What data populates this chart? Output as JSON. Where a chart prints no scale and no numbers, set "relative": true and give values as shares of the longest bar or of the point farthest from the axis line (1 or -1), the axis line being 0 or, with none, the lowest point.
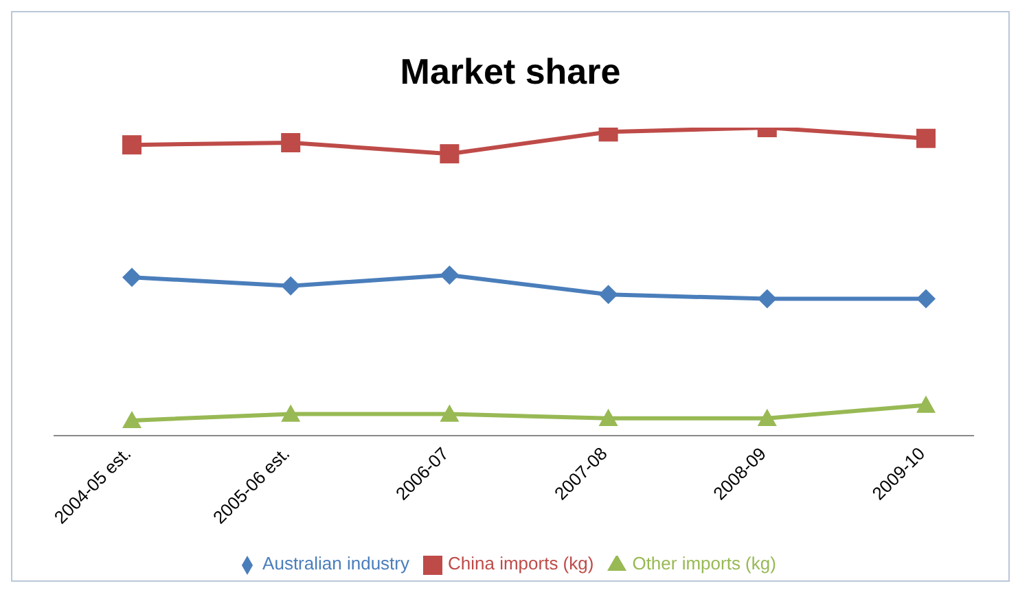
{
  "chart_data": {
    "type": "line",
    "title": "Market share",
    "relative": true,
    "categories": [
      "2004-05 est.",
      "2005-06 est.",
      "2006-07",
      "2007-08",
      "2008-09",
      "2009-10"
    ],
    "series": [
      {
        "name": "Australian industry",
        "color": "#4a7ebb",
        "marker": "diamond",
        "values": [
          0.514,
          0.486,
          0.521,
          0.458,
          0.444,
          0.444
        ]
      },
      {
        "name": "China imports (kg)",
        "color": "#be4b48",
        "marker": "square",
        "values": [
          0.944,
          0.951,
          0.915,
          0.986,
          1,
          0.965
        ]
      },
      {
        "name": "Other imports (kg)",
        "color": "#98b954",
        "marker": "triangle",
        "values": [
          0.049,
          0.07,
          0.07,
          0.056,
          0.056,
          0.099
        ]
      }
    ],
    "legend": "bottom",
    "grid": false
  }
}
